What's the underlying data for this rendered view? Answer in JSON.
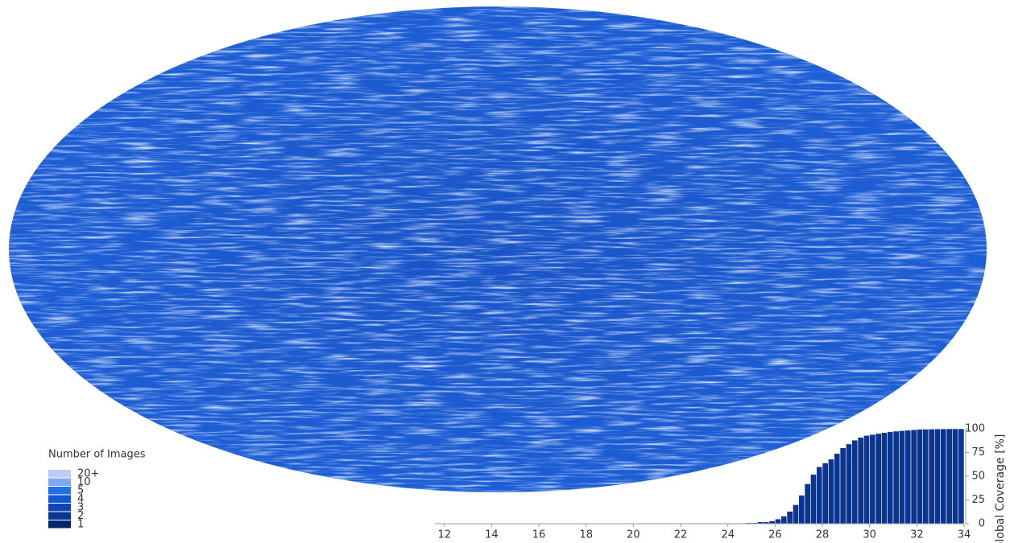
{
  "legend": {
    "title": "Number of Images",
    "items": [
      "20+",
      "10",
      "5",
      "4",
      "3",
      "2",
      "1"
    ],
    "colors": [
      "#b9cdf5",
      "#7eaaf2",
      "#1f6fe8",
      "#1456d0",
      "#0f45b4",
      "#0a3593",
      "#06246c"
    ]
  },
  "chart_data": {
    "type": "bar",
    "ylabel": "Global Coverage [%]",
    "color": "#0b3590",
    "x": [
      13,
      13.25,
      13.5,
      13.75,
      14,
      14.25,
      14.5,
      14.75,
      15,
      15.25,
      15.5,
      15.75,
      16,
      16.25,
      16.5,
      16.75,
      17,
      17.25,
      17.5,
      17.75,
      18,
      18.25,
      18.5,
      18.75,
      19,
      19.25,
      19.5,
      19.75,
      20,
      20.25,
      20.5,
      20.75,
      21,
      21.25,
      21.5,
      21.75,
      22,
      22.25,
      22.5,
      22.75,
      23,
      23.25,
      23.5,
      23.75,
      24,
      24.25,
      24.5,
      24.75,
      25,
      25.25,
      25.5,
      25.75,
      26,
      26.25,
      26.5,
      26.75,
      27,
      27.25,
      27.5,
      27.75,
      28,
      28.25,
      28.5,
      28.75,
      29,
      29.25,
      29.5,
      29.75,
      30,
      30.25,
      30.5,
      30.75,
      31,
      31.25,
      31.5,
      31.75,
      32,
      32.25,
      32.5,
      32.75,
      33,
      33.25,
      33.5,
      33.75,
      34
    ],
    "values": [
      0.2,
      0.2,
      0.2,
      0.2,
      0.2,
      0.2,
      0.2,
      0.2,
      0.2,
      0.2,
      0.2,
      0.2,
      0.2,
      0.2,
      0.2,
      0.2,
      0.2,
      0.2,
      0.2,
      0.2,
      0.2,
      0.2,
      0.2,
      0.2,
      0.2,
      0.2,
      0.2,
      0.2,
      0.5,
      0.5,
      0.5,
      0.5,
      0.5,
      0.5,
      0.5,
      0.5,
      0.5,
      0.5,
      0.5,
      0.5,
      0.5,
      0.5,
      0.5,
      0.5,
      0.5,
      0.5,
      0.5,
      0.5,
      1,
      1,
      2,
      2,
      3,
      5,
      8,
      13,
      20,
      30,
      42,
      52,
      60,
      64,
      68,
      74,
      80,
      84,
      88,
      91,
      93,
      94,
      95,
      96,
      97,
      97.5,
      98,
      98.5,
      99,
      99.5,
      99.6,
      99.7,
      99.8,
      99.9,
      100,
      100,
      100
    ],
    "xlim": [
      11.6,
      34
    ],
    "xticks": [
      12,
      14,
      16,
      18,
      20,
      22,
      24,
      26,
      28,
      30,
      32,
      34
    ],
    "ylim": [
      0,
      100
    ],
    "yticks": [
      0,
      25,
      50,
      75,
      100
    ]
  }
}
